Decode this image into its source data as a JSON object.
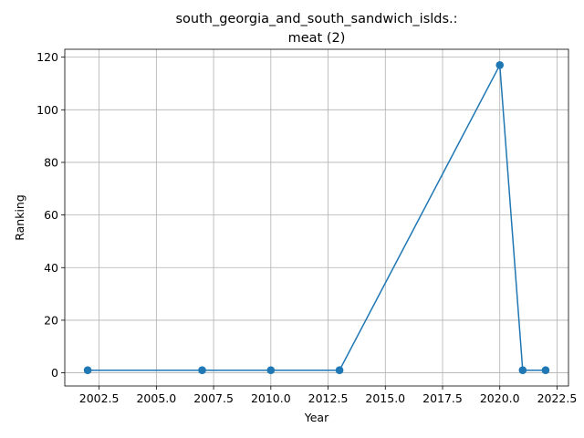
{
  "chart_data": {
    "type": "line",
    "title_lines": [
      "south_georgia_and_south_sandwich_islds.:",
      "meat (2)"
    ],
    "xlabel": "Year",
    "ylabel": "Ranking",
    "xlim": [
      2001.0,
      2023.0
    ],
    "ylim": [
      -5,
      123
    ],
    "x_ticks": [
      2002.5,
      2005.0,
      2007.5,
      2010.0,
      2012.5,
      2015.0,
      2017.5,
      2020.0,
      2022.5
    ],
    "x_tick_labels": [
      "2002.5",
      "2005.0",
      "2007.5",
      "2010.0",
      "2012.5",
      "2015.0",
      "2017.5",
      "2020.0",
      "2022.5"
    ],
    "y_ticks": [
      0,
      20,
      40,
      60,
      80,
      100,
      120
    ],
    "y_tick_labels": [
      "0",
      "20",
      "40",
      "60",
      "80",
      "100",
      "120"
    ],
    "grid": true,
    "series": [
      {
        "color": "#1f77b4",
        "marker": "circle",
        "x": [
          2002,
          2007,
          2010,
          2013,
          2020,
          2021,
          2022
        ],
        "y": [
          1,
          1,
          1,
          1,
          117,
          1,
          1
        ]
      }
    ]
  }
}
